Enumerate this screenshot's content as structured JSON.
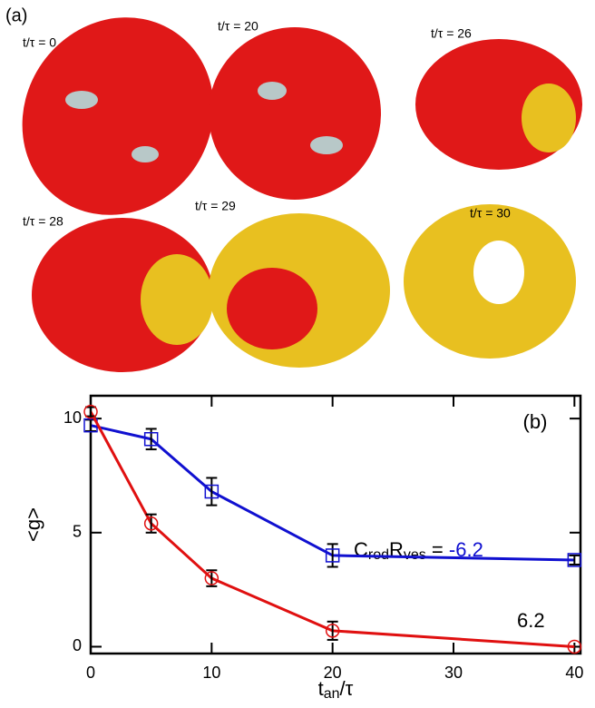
{
  "panel_a": {
    "label": "(a)",
    "snapshots": [
      "t/τ = 0",
      "t/τ = 20",
      "t/τ = 26",
      "t/τ = 28",
      "t/τ = 29",
      "t/τ = 30"
    ]
  },
  "chart_data": {
    "type": "line",
    "panel_label": "(b)",
    "x": [
      0,
      5,
      10,
      20,
      40
    ],
    "x_label_parts": [
      "t",
      "an",
      "/τ"
    ],
    "y_label": "<g>",
    "annotation_parts": [
      "C",
      "rod",
      "R",
      "ves",
      " = "
    ],
    "series": [
      {
        "name": "-6.2",
        "color": "#1010d0",
        "marker": "square",
        "values": [
          9.7,
          9.1,
          6.8,
          4.0,
          3.8
        ],
        "errors": [
          0.25,
          0.45,
          0.6,
          0.5,
          0.2
        ]
      },
      {
        "name": "6.2",
        "color": "#e01010",
        "marker": "circle",
        "values": [
          10.3,
          5.4,
          3.0,
          0.7,
          0.0
        ],
        "errors": [
          0.2,
          0.4,
          0.35,
          0.4,
          0.0
        ]
      }
    ],
    "xlim": [
      0,
      40.5
    ],
    "ylim": [
      -0.3,
      11
    ],
    "xticks": [
      0,
      10,
      20,
      30,
      40
    ],
    "yticks": [
      0,
      5,
      10
    ]
  }
}
